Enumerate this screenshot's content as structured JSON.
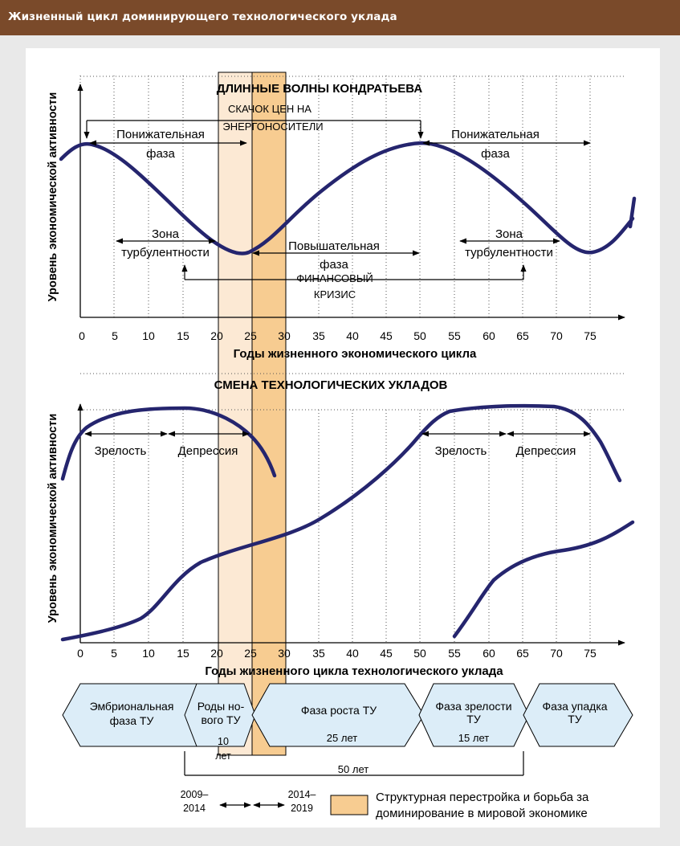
{
  "header": {
    "title": "Жизненный цикл доминирующего технологического уклада"
  },
  "top": {
    "title": "ДЛИННЫЕ ВОЛНЫ КОНДРАТЬЕВА",
    "ylabel": "Уровень экономической активности",
    "xlabel": "Годы жизненного экономического цикла",
    "price_jump": [
      "СКАЧОК ЦЕН НА",
      "ЭНЕРГОНОСИТЕЛИ"
    ],
    "down_phase_left": [
      "Понижательная",
      "фаза"
    ],
    "down_phase_right": [
      "Понижательная",
      "фаза"
    ],
    "turb_left": [
      "Зона",
      "турбулентности"
    ],
    "turb_right": [
      "Зона",
      "турбулентности"
    ],
    "up_phase": [
      "Повышательная",
      "фаза"
    ],
    "fin_crisis": [
      "ФИНАНСОВЫЙ",
      "КРИЗИС"
    ]
  },
  "bottom": {
    "title": "СМЕНА ТЕХНОЛОГИЧЕСКИХ УКЛАДОВ",
    "ylabel": "Уровень экономической активности",
    "xlabel": "Годы жизненного цикла технологического уклада",
    "maturity_left": "Зрелость",
    "depression_left": "Депрессия",
    "maturity_right": "Зрелость",
    "depression_right": "Депрессия"
  },
  "ticks": [
    "0",
    "5",
    "10",
    "15",
    "20",
    "25",
    "30",
    "35",
    "40",
    "45",
    "50",
    "55",
    "60",
    "65",
    "70",
    "75"
  ],
  "phases": {
    "embryo": [
      "Эмбриональная",
      "фаза ТУ"
    ],
    "birth": [
      "Роды но-",
      "вого ТУ"
    ],
    "birth_years": [
      "10",
      "лет"
    ],
    "growth": "Фаза роста ТУ",
    "growth_years": "25 лет",
    "maturity": [
      "Фаза зрелости",
      "ТУ"
    ],
    "maturity_years": "15 лет",
    "decline": [
      "Фаза упадка",
      "ТУ"
    ],
    "total_years": "50 лет"
  },
  "periods": {
    "p1": [
      "2009–",
      "2014"
    ],
    "p2": [
      "2014–",
      "2019"
    ]
  },
  "legend": {
    "line1": "Структурная перестройка и борьба за",
    "line2": "доминирование в мировой экономике"
  },
  "colors": {
    "curve": "#25256e",
    "band_light": "#fce9d4",
    "band_dark": "#f7cc91",
    "arrow_fill": "#dcedf8",
    "header": "#7a4a2a"
  }
}
